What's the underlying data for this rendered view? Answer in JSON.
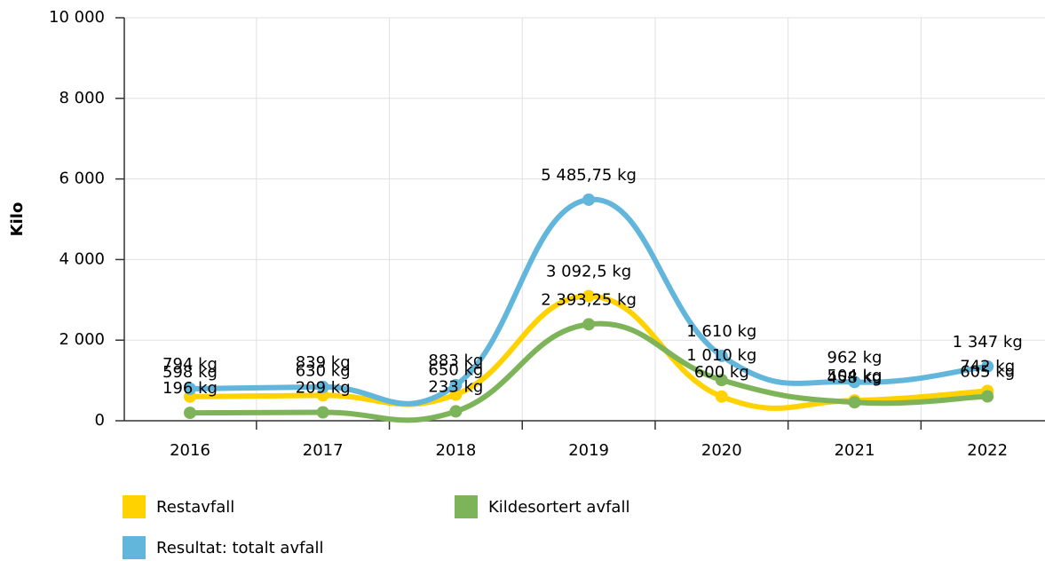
{
  "chart_data": {
    "type": "line",
    "y_label": "Kilo",
    "categories": [
      "2016",
      "2017",
      "2018",
      "2019",
      "2020",
      "2021",
      "2022"
    ],
    "series": [
      {
        "name": "Restavfall",
        "color": "#ffd200",
        "values": [
          598,
          630,
          650,
          3092.5,
          600,
          504,
          742
        ],
        "value_labels": [
          "598 kg",
          "630 kg",
          "650 kg",
          "3 092,5 kg",
          "600 kg",
          "504 kg",
          "742 kg"
        ]
      },
      {
        "name": "Kildesortert avfall",
        "color": "#7db45a",
        "values": [
          196,
          209,
          233,
          2393.25,
          1010,
          458,
          605
        ],
        "value_labels": [
          "196 kg",
          "209 kg",
          "233 kg",
          "2 393,25 kg",
          "1 010 kg",
          "458 kg",
          "605 kg"
        ]
      },
      {
        "name": "Resultat: totalt avfall",
        "color": "#62b6dc",
        "values": [
          794,
          839,
          883,
          5485.75,
          1610,
          962,
          1347
        ],
        "value_labels": [
          "794 kg",
          "839 kg",
          "883 kg",
          "5 485,75 kg",
          "1 610 kg",
          "962 kg",
          "1 347 kg"
        ]
      }
    ],
    "ylim": [
      0,
      10000
    ],
    "yticks": [
      0,
      {
        "value": 2000,
        "label": "2 000"
      },
      {
        "value": 4000,
        "label": "4 000"
      },
      {
        "value": 6000,
        "label": "6 000"
      },
      {
        "value": 8000,
        "label": "8 000"
      },
      {
        "value": 10000,
        "label": "10 000"
      }
    ],
    "grid": true,
    "legend": "bottom"
  }
}
